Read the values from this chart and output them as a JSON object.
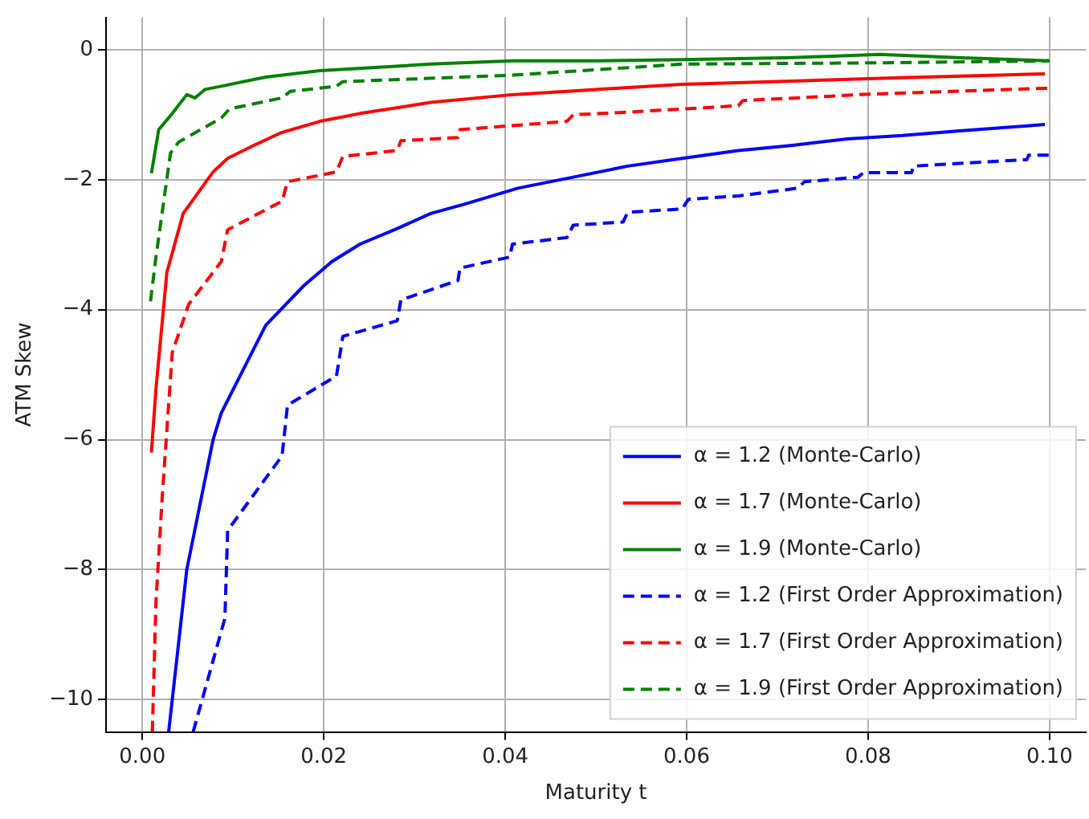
{
  "chart_data": {
    "type": "line",
    "xlabel": "Maturity t",
    "ylabel": "ATM Skew",
    "xlim": [
      -0.004,
      0.104
    ],
    "ylim": [
      -10.5,
      0.5
    ],
    "xticks": [
      {
        "value": 0,
        "label": "0.00"
      },
      {
        "value": 0.02,
        "label": "0.02"
      },
      {
        "value": 0.04,
        "label": "0.04"
      },
      {
        "value": 0.06,
        "label": "0.06"
      },
      {
        "value": 0.08,
        "label": "0.08"
      },
      {
        "value": 0.1,
        "label": "0.10"
      }
    ],
    "yticks": [
      {
        "value": -10,
        "label": "−10"
      },
      {
        "value": -8,
        "label": "−8"
      },
      {
        "value": -6,
        "label": "−6"
      },
      {
        "value": -4,
        "label": "−4"
      },
      {
        "value": -2,
        "label": "−2"
      },
      0
    ],
    "grid": true,
    "legend": "bottom right",
    "marker": "none",
    "series": [
      {
        "name": "α = 1.2 (Monte-Carlo)",
        "color": "#0000ff",
        "line_style": "solid",
        "x": [
          0.0029,
          0.0049,
          0.0078,
          0.0087,
          0.0136,
          0.0178,
          0.0209,
          0.024,
          0.0281,
          0.0318,
          0.0354,
          0.0414,
          0.0475,
          0.0535,
          0.0595,
          0.0657,
          0.0717,
          0.0777,
          0.0838,
          0.0898,
          0.0995
        ],
        "values": [
          -10.5,
          -8,
          -6,
          -5.59,
          -4.24,
          -3.63,
          -3.26,
          -2.99,
          -2.75,
          -2.52,
          -2.38,
          -2.13,
          -1.96,
          -1.79,
          -1.67,
          -1.55,
          -1.47,
          -1.37,
          -1.32,
          -1.25,
          -1.15
        ]
      },
      {
        "name": "α = 1.7 (Monte-Carlo)",
        "color": "#ff0000",
        "line_style": "solid",
        "x": [
          0.001,
          0.0015,
          0.0027,
          0.0045,
          0.0078,
          0.0094,
          0.0123,
          0.0154,
          0.0196,
          0.024,
          0.0318,
          0.0408,
          0.05,
          0.0595,
          0.0717,
          0.0838,
          0.0995
        ],
        "values": [
          -6.2,
          -5.22,
          -3.43,
          -2.52,
          -1.88,
          -1.67,
          -1.47,
          -1.27,
          -1.1,
          -0.98,
          -0.81,
          -0.69,
          -0.61,
          -0.53,
          -0.48,
          -0.43,
          -0.37
        ]
      },
      {
        "name": "α = 1.9 (Monte-Carlo)",
        "color": "#008000",
        "line_style": "solid",
        "x": [
          0.001,
          0.0018,
          0.0033,
          0.0049,
          0.0058,
          0.0069,
          0.0087,
          0.0136,
          0.0196,
          0.0257,
          0.0318,
          0.0408,
          0.05,
          0.0595,
          0.0717,
          0.0813,
          0.0898,
          0.1
        ],
        "values": [
          -1.9,
          -1.23,
          -0.98,
          -0.69,
          -0.74,
          -0.61,
          -0.56,
          -0.42,
          -0.32,
          -0.27,
          -0.22,
          -0.17,
          -0.17,
          -0.15,
          -0.12,
          -0.07,
          -0.12,
          -0.17
        ]
      },
      {
        "name": "α = 1.2 (First Order Approximation)",
        "color": "#0000ff",
        "line_style": "dashed",
        "x": [
          0.0056,
          0.0091,
          0.0094,
          0.0154,
          0.016,
          0.0214,
          0.0221,
          0.0281,
          0.0285,
          0.0348,
          0.035,
          0.0405,
          0.0408,
          0.0468,
          0.0475,
          0.053,
          0.0535,
          0.0595,
          0.0602,
          0.0657,
          0.0722,
          0.073,
          0.0789,
          0.0795,
          0.0848,
          0.085,
          0.0975,
          0.0977,
          0.1
        ],
        "values": [
          -10.5,
          -8.75,
          -7.4,
          -6.25,
          -5.47,
          -5.02,
          -4.41,
          -4.17,
          -3.85,
          -3.55,
          -3.36,
          -3.19,
          -2.99,
          -2.89,
          -2.7,
          -2.65,
          -2.5,
          -2.45,
          -2.3,
          -2.25,
          -2.13,
          -2.03,
          -1.96,
          -1.89,
          -1.89,
          -1.79,
          -1.69,
          -1.62,
          -1.62
        ]
      },
      {
        "name": "α = 1.7 (First Order Approximation)",
        "color": "#ff0000",
        "line_style": "dashed",
        "x": [
          0.0011,
          0.0015,
          0.0022,
          0.0033,
          0.0051,
          0.0087,
          0.0094,
          0.0154,
          0.016,
          0.0214,
          0.0221,
          0.0281,
          0.0285,
          0.0348,
          0.035,
          0.0468,
          0.0475,
          0.0535,
          0.0657,
          0.0662,
          0.0722,
          0.0789,
          0.085,
          0.1
        ],
        "values": [
          -10.5,
          -8.5,
          -6.86,
          -4.66,
          -3.92,
          -3.26,
          -2.77,
          -2.33,
          -2.03,
          -1.88,
          -1.64,
          -1.55,
          -1.4,
          -1.35,
          -1.23,
          -1.1,
          -1,
          -0.96,
          -0.86,
          -0.78,
          -0.74,
          -0.69,
          -0.66,
          -0.59
        ]
      },
      {
        "name": "α = 1.9 (First Order Approximation)",
        "color": "#008000",
        "line_style": "dashed",
        "x": [
          0.0009,
          0.0015,
          0.0031,
          0.004,
          0.0087,
          0.0096,
          0.0154,
          0.0163,
          0.0214,
          0.0221,
          0.0408,
          0.0595,
          0.081,
          0.1
        ],
        "values": [
          -3.87,
          -3.19,
          -1.59,
          -1.42,
          -1.05,
          -0.91,
          -0.74,
          -0.64,
          -0.56,
          -0.49,
          -0.39,
          -0.22,
          -0.2,
          -0.17
        ]
      }
    ]
  }
}
